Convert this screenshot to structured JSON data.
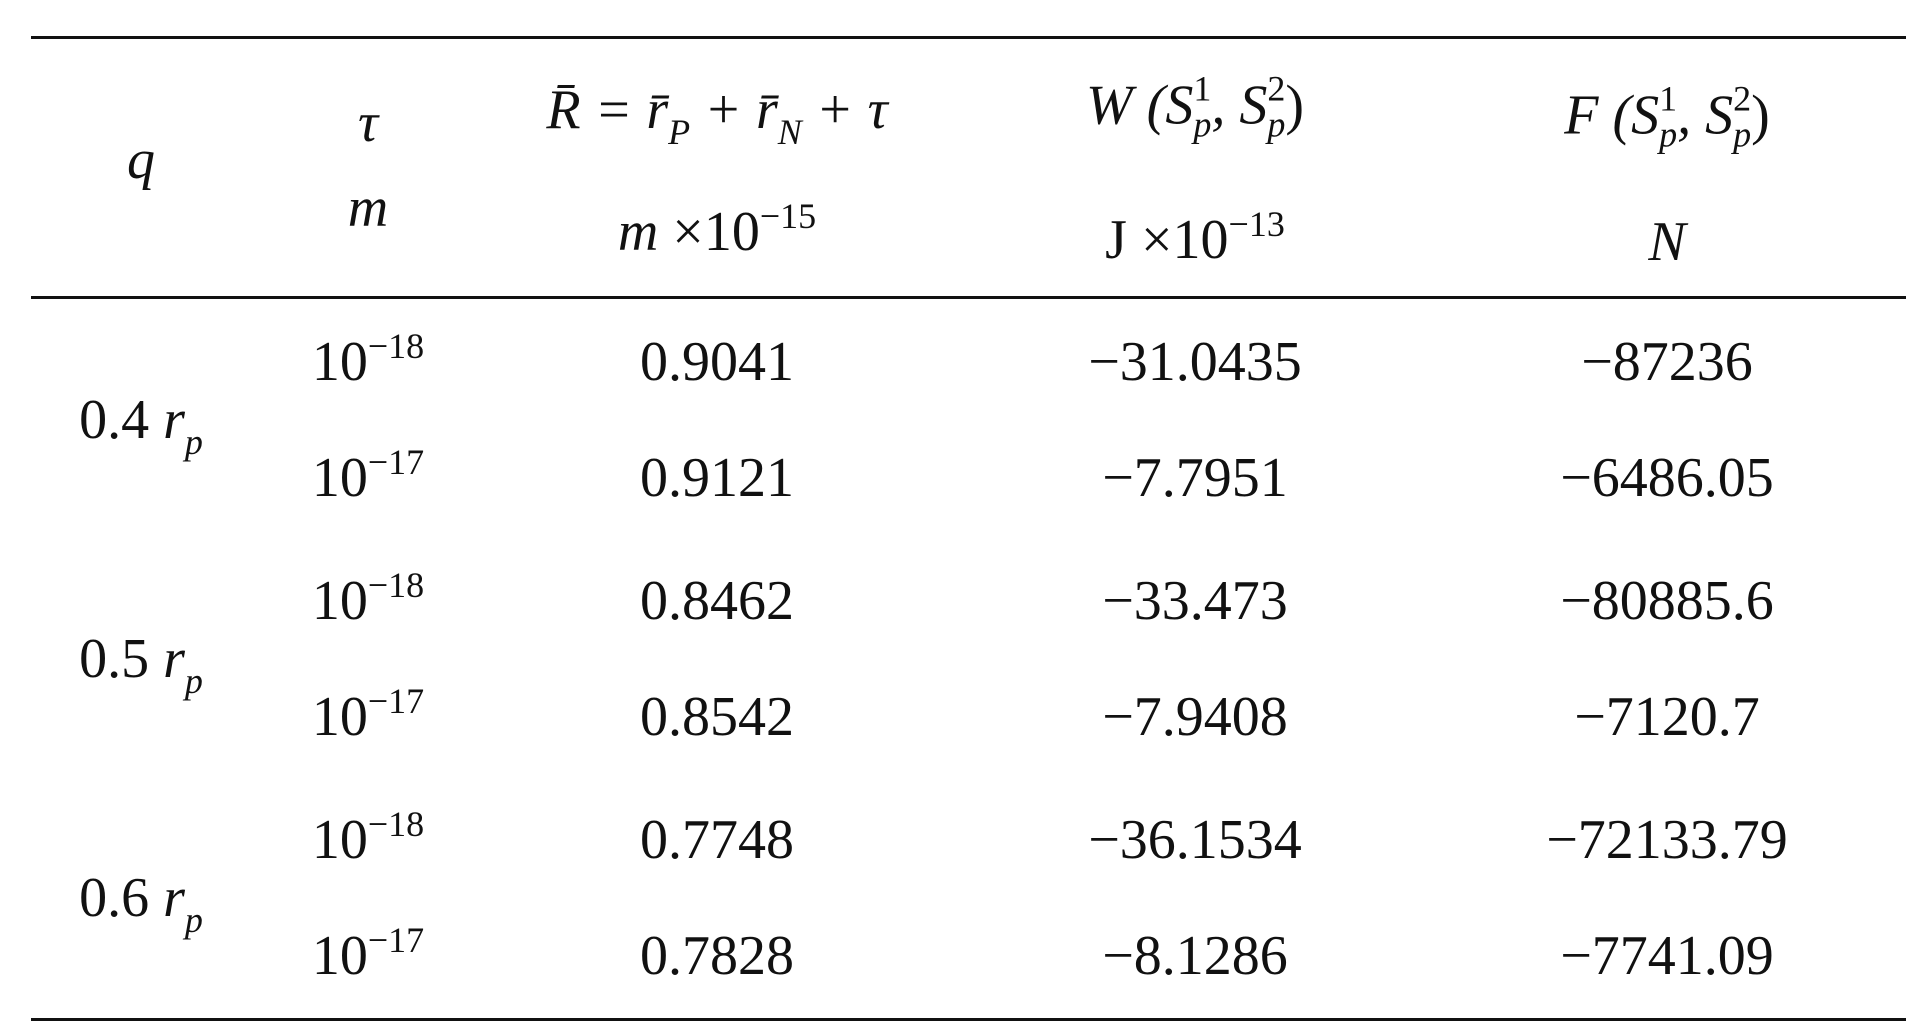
{
  "table": {
    "header": [
      {
        "lines": [
          [
            {
              "text": "q",
              "italic": true
            }
          ]
        ]
      },
      {
        "lines": [
          [
            {
              "text": "τ",
              "italic": true
            }
          ],
          [
            {
              "text": "m",
              "italic": true
            }
          ]
        ]
      },
      {
        "lines": [
          [
            {
              "text": "R̄ = r̄",
              "italic": true,
              "sub": "P"
            },
            {
              "text": " + r̄",
              "italic": true,
              "sub": "N"
            },
            {
              "text": " + τ",
              "italic": true
            }
          ],
          [
            {
              "text": "m",
              "italic": true
            },
            {
              "text": " ×10",
              "sup": "−15"
            }
          ]
        ]
      },
      {
        "lines": [
          [
            {
              "text": "W (S",
              "italic": true,
              "sup": "1",
              "sub": "p"
            },
            {
              "text": ", S",
              "italic": true,
              "sup": "2",
              "sub": "p"
            },
            {
              "text": ")"
            }
          ],
          [
            {
              "text": "J ×10",
              "sup": "−13"
            }
          ]
        ]
      },
      {
        "lines": [
          [
            {
              "text": "F (S",
              "italic": true,
              "sup": "1",
              "sub": "p"
            },
            {
              "text": ", S",
              "italic": true,
              "sup": "2",
              "sub": "p"
            },
            {
              "text": ")"
            }
          ],
          [
            {
              "text": "N",
              "italic": true
            }
          ]
        ]
      }
    ],
    "groups": [
      {
        "q": [
          {
            "text": "0.4 "
          },
          {
            "text": "r",
            "italic": true,
            "sub": "p"
          }
        ],
        "rows": [
          [
            [
              {
                "text": "10",
                "sup": "−18"
              }
            ],
            "0.9041",
            "−31.0435",
            "−87236"
          ],
          [
            [
              {
                "text": "10",
                "sup": "−17"
              }
            ],
            "0.9121",
            "−7.7951",
            "−6486.05"
          ]
        ]
      },
      {
        "q": [
          {
            "text": "0.5 "
          },
          {
            "text": "r",
            "italic": true,
            "sub": "p"
          }
        ],
        "rows": [
          [
            [
              {
                "text": "10",
                "sup": "−18"
              }
            ],
            "0.8462",
            "−33.473",
            "−80885.6"
          ],
          [
            [
              {
                "text": "10",
                "sup": "−17"
              }
            ],
            "0.8542",
            "−7.9408",
            "−7120.7"
          ]
        ]
      },
      {
        "q": [
          {
            "text": "0.6 "
          },
          {
            "text": "r",
            "italic": true,
            "sub": "p"
          }
        ],
        "rows": [
          [
            [
              {
                "text": "10",
                "sup": "−18"
              }
            ],
            "0.7748",
            "−36.1534",
            "−72133.79"
          ],
          [
            [
              {
                "text": "10",
                "sup": "−17"
              }
            ],
            "0.7828",
            "−8.1286",
            "−7741.09"
          ]
        ]
      }
    ]
  }
}
